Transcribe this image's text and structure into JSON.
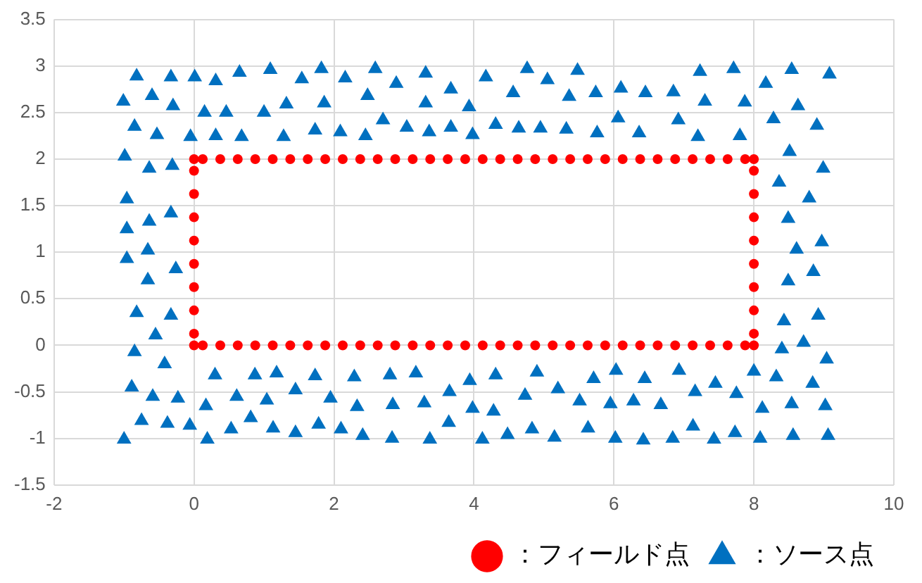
{
  "chart_data": {
    "type": "scatter",
    "xlim": [
      -2,
      10
    ],
    "xticks": [
      -2,
      0,
      2,
      4,
      6,
      8,
      10
    ],
    "ylim": [
      -1.5,
      3.5
    ],
    "yticks": [
      -1.5,
      -1,
      -0.5,
      0,
      0.5,
      1,
      1.5,
      2,
      2.5,
      3,
      3.5
    ],
    "grid": true,
    "legend": "bottom",
    "series": [
      {
        "name": "：フィールド点",
        "color": "#ff0000",
        "marker": "circle",
        "x": [
          0,
          0.125,
          0.375,
          0.625,
          0.875,
          1.125,
          1.375,
          1.625,
          1.875,
          2.125,
          2.375,
          2.625,
          2.875,
          3.125,
          3.375,
          3.625,
          3.875,
          4.125,
          4.375,
          4.625,
          4.875,
          5.125,
          5.375,
          5.625,
          5.875,
          6.125,
          6.375,
          6.625,
          6.875,
          7.125,
          7.375,
          7.625,
          7.875,
          8,
          0,
          0.125,
          0.375,
          0.625,
          0.875,
          1.125,
          1.375,
          1.625,
          1.875,
          2.125,
          2.375,
          2.625,
          2.875,
          3.125,
          3.375,
          3.625,
          3.875,
          4.125,
          4.375,
          4.625,
          4.875,
          5.125,
          5.375,
          5.625,
          5.875,
          6.125,
          6.375,
          6.625,
          6.875,
          7.125,
          7.375,
          7.625,
          7.875,
          8,
          0,
          0,
          0,
          0,
          0,
          0,
          0,
          0,
          8,
          8,
          8,
          8,
          8,
          8,
          8,
          8
        ],
        "values": [
          0,
          0,
          0,
          0,
          0,
          0,
          0,
          0,
          0,
          0,
          0,
          0,
          0,
          0,
          0,
          0,
          0,
          0,
          0,
          0,
          0,
          0,
          0,
          0,
          0,
          0,
          0,
          0,
          0,
          0,
          0,
          0,
          0,
          0,
          2,
          2,
          2,
          2,
          2,
          2,
          2,
          2,
          2,
          2,
          2,
          2,
          2,
          2,
          2,
          2,
          2,
          2,
          2,
          2,
          2,
          2,
          2,
          2,
          2,
          2,
          2,
          2,
          2,
          2,
          2,
          2,
          2,
          2,
          0.125,
          0.375,
          0.625,
          0.875,
          1.125,
          1.375,
          1.625,
          1.875,
          0.125,
          0.375,
          0.625,
          0.875,
          1.125,
          1.375,
          1.625,
          1.875
        ]
      },
      {
        "name": "：ソース点",
        "color": "#0070c0",
        "marker": "triangle",
        "x": [
          -0.82,
          -0.33,
          0.01,
          0.31,
          0.65,
          1.09,
          1.54,
          1.82,
          2.16,
          2.59,
          2.89,
          3.31,
          3.67,
          -1.01,
          -0.6,
          -0.3,
          0.15,
          0.46,
          1,
          1.32,
          1.86,
          2.48,
          3.31,
          3.93,
          -0.85,
          -0.53,
          -0.05,
          0.31,
          0.68,
          1.28,
          1.73,
          2.09,
          2.45,
          2.7,
          3.04,
          3.36,
          3.67,
          3.98,
          4.17,
          4.76,
          5.05,
          5.48,
          4.56,
          5.36,
          5.74,
          6.1,
          6.45,
          6.85,
          7.23,
          7.71,
          7.3,
          7.87,
          8.17,
          8.54,
          9.08,
          8.63,
          4.31,
          4.64,
          4.95,
          5.32,
          5.76,
          6.06,
          6.36,
          6.92,
          7.2,
          7.8,
          8.28,
          8.9,
          8.51,
          -0.99,
          -0.64,
          -0.31,
          -0.96,
          -0.33,
          -0.64,
          -0.96,
          -0.66,
          -0.96,
          -0.26,
          -0.66,
          -0.82,
          -0.33,
          -0.55,
          -0.85,
          -0.42,
          8.99,
          8.36,
          8.79,
          8.49,
          8.61,
          8.97,
          8.49,
          8.85,
          8.43,
          8.92,
          8.4,
          8.71,
          9.04,
          -0.89,
          -0.59,
          -0.23,
          -0.75,
          -0.38,
          -0.06,
          -1,
          0.19,
          0.17,
          0.3,
          0.87,
          1.18,
          0.61,
          1.04,
          0.81,
          0.53,
          1.13,
          1.45,
          1.45,
          1.73,
          1.95,
          1.78,
          2.1,
          2.41,
          2.29,
          2.33,
          2.8,
          2.84,
          2.83,
          3.17,
          3.29,
          3.37,
          3.65,
          3.64,
          3.94,
          3.98,
          4.31,
          4.9,
          5.71,
          6.03,
          6.44,
          6.93,
          7.45,
          8,
          8.32,
          8.84,
          4.73,
          5.2,
          5.51,
          5.95,
          6.28,
          6.67,
          7.16,
          7.75,
          4.28,
          8.12,
          8.54,
          9.02,
          4.12,
          4.48,
          4.83,
          5.15,
          5.63,
          6.02,
          6.42,
          6.84,
          7.13,
          7.43,
          7.73,
          8.09,
          8.56,
          9.06
        ],
        "values": [
          2.89,
          2.88,
          2.88,
          2.84,
          2.93,
          2.96,
          2.86,
          2.97,
          2.87,
          2.97,
          2.81,
          2.92,
          2.75,
          2.62,
          2.68,
          2.57,
          2.5,
          2.5,
          2.5,
          2.59,
          2.6,
          2.68,
          2.6,
          2.56,
          2.35,
          2.26,
          2.24,
          2.25,
          2.24,
          2.24,
          2.31,
          2.29,
          2.25,
          2.42,
          2.34,
          2.29,
          2.34,
          2.26,
          2.88,
          2.97,
          2.85,
          2.95,
          2.71,
          2.67,
          2.71,
          2.76,
          2.71,
          2.72,
          2.94,
          2.97,
          2.62,
          2.61,
          2.81,
          2.96,
          2.91,
          2.57,
          2.37,
          2.33,
          2.33,
          2.32,
          2.28,
          2.44,
          2.28,
          2.42,
          2.24,
          2.25,
          2.43,
          2.36,
          2.08,
          2.03,
          1.9,
          1.93,
          1.57,
          1.42,
          1.33,
          1.25,
          1.02,
          0.93,
          0.82,
          0.7,
          0.35,
          0.32,
          0.11,
          -0.07,
          -0.2,
          1.9,
          1.75,
          1.58,
          1.36,
          1.03,
          1.11,
          0.69,
          0.79,
          0.26,
          0.32,
          -0.04,
          0.03,
          -0.15,
          -0.45,
          -0.55,
          -0.57,
          -0.81,
          -0.84,
          -0.86,
          -1.01,
          -1.01,
          -0.65,
          -0.32,
          -0.32,
          -0.3,
          -0.55,
          -0.59,
          -0.78,
          -0.9,
          -0.89,
          -0.94,
          -0.48,
          -0.33,
          -0.57,
          -0.85,
          -0.9,
          -0.97,
          -0.34,
          -0.66,
          -0.32,
          -0.64,
          -1,
          -0.3,
          -0.62,
          -1.01,
          -0.5,
          -0.83,
          -0.38,
          -0.68,
          -0.32,
          -0.29,
          -0.36,
          -0.27,
          -0.36,
          -0.27,
          -0.41,
          -0.28,
          -0.34,
          -0.41,
          -0.54,
          -0.47,
          -0.6,
          -0.63,
          -0.6,
          -0.64,
          -0.5,
          -0.52,
          -0.71,
          -0.68,
          -0.63,
          -0.65,
          -1.01,
          -0.96,
          -0.9,
          -0.99,
          -0.89,
          -1,
          -1.02,
          -1,
          -0.87,
          -1.01,
          -0.94,
          -1,
          -0.97,
          -0.97
        ]
      }
    ]
  }
}
